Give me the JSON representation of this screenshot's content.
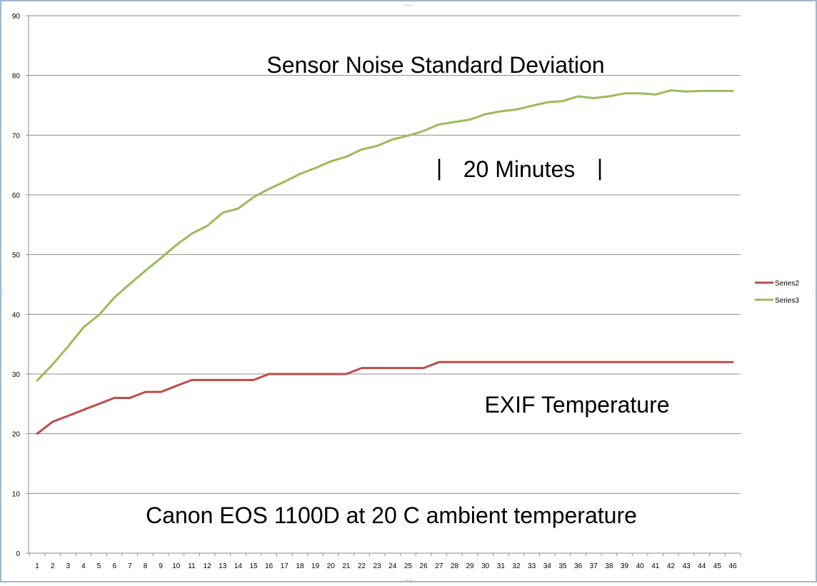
{
  "chart_data": {
    "type": "line",
    "title": "Sensor Noise Standard Deviation",
    "xlabel": "",
    "ylabel": "",
    "ylim": [
      0,
      90
    ],
    "yticks": [
      0,
      10,
      20,
      30,
      40,
      50,
      60,
      70,
      80,
      90
    ],
    "grid": "horizontal",
    "legend_position": "right",
    "categories": [
      "1",
      "2",
      "3",
      "4",
      "5",
      "6",
      "7",
      "8",
      "9",
      "10",
      "11",
      "12",
      "13",
      "14",
      "15",
      "16",
      "17",
      "18",
      "19",
      "20",
      "21",
      "22",
      "23",
      "24",
      "25",
      "26",
      "27",
      "28",
      "29",
      "30",
      "31",
      "32",
      "33",
      "34",
      "35",
      "36",
      "37",
      "38",
      "39",
      "40",
      "41",
      "42",
      "43",
      "44",
      "45",
      "46"
    ],
    "series": [
      {
        "name": "Series2",
        "color": "#be4b48",
        "values": [
          20,
          22,
          23,
          24,
          25,
          26,
          26,
          27,
          27,
          28,
          29,
          29,
          29,
          29,
          29,
          30,
          30,
          30,
          30,
          30,
          30,
          31,
          31,
          31,
          31,
          31,
          32,
          32,
          32,
          32,
          32,
          32,
          32,
          32,
          32,
          32,
          32,
          32,
          32,
          32,
          32,
          32,
          32,
          32,
          32,
          32
        ]
      },
      {
        "name": "Series3",
        "color": "#9bbb59",
        "values": [
          28.9,
          31.6,
          34.6,
          37.8,
          39.9,
          42.8,
          45.1,
          47.3,
          49.4,
          51.6,
          53.5,
          54.8,
          57.0,
          57.7,
          59.6,
          61.0,
          62.2,
          63.5,
          64.5,
          65.6,
          66.4,
          67.6,
          68.2,
          69.3,
          69.9,
          70.7,
          71.8,
          72.2,
          72.6,
          73.5,
          74.0,
          74.3,
          74.9,
          75.5,
          75.7,
          76.5,
          76.2,
          76.5,
          77.0,
          77.0,
          76.8,
          77.5,
          77.3,
          77.4,
          77.4,
          77.4
        ]
      }
    ],
    "annotations": {
      "title_text": "Sensor Noise Standard Deviation",
      "minutes_left_bar": "|",
      "minutes_text": "20 Minutes",
      "minutes_right_bar": "|",
      "exif_text": "EXIF Temperature",
      "canon_text": "Canon EOS 1100D  at 20 C ambient temperature"
    }
  }
}
